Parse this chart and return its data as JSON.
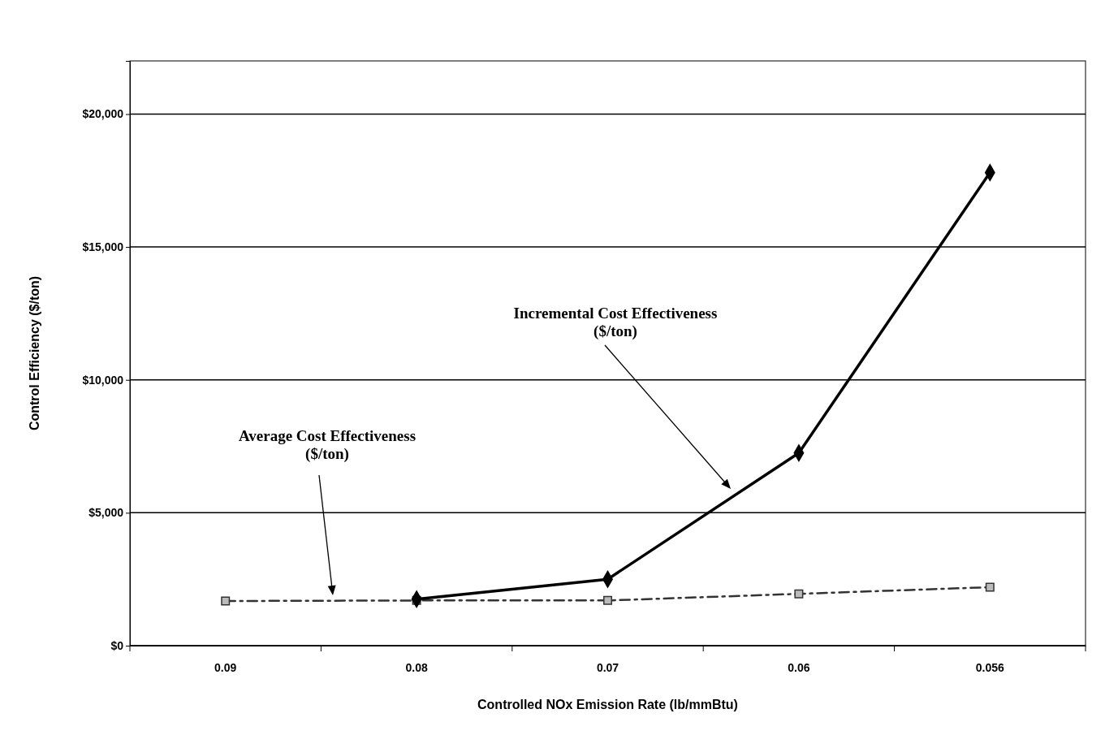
{
  "chart_data": {
    "type": "line",
    "xlabel": "Controlled NOx Emission Rate (lb/mmBtu)",
    "ylabel": "Control Efficiency ($/ton)",
    "categories": [
      "0.09",
      "0.08",
      "0.07",
      "0.06",
      "0.056"
    ],
    "series": [
      {
        "color": "#000000",
        "values": [
          null,
          1750,
          2500,
          7250,
          17800
        ],
        "marker": "diamond",
        "line_style": "solid"
      },
      {
        "color": "#333333",
        "values": [
          1680,
          1700,
          1700,
          1950,
          2200
        ],
        "marker": "square",
        "line_style": "dashed"
      }
    ],
    "ylim": [
      0,
      22000
    ],
    "yticks": [
      {
        "value": 0,
        "label": "$0"
      },
      {
        "value": 5000,
        "label": "$5,000"
      },
      {
        "value": 10000,
        "label": "$10,000"
      },
      {
        "value": 15000,
        "label": "$15,000"
      },
      {
        "value": 20000,
        "label": "$20,000"
      }
    ],
    "grid": "y",
    "annotations": [
      "Incremental Cost Effectiveness\n($/ton)",
      "Average Cost Effectiveness\n($/ton)"
    ]
  }
}
